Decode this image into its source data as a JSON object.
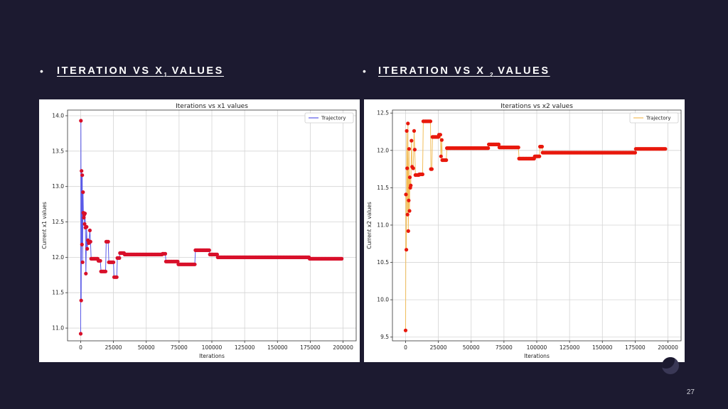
{
  "slide": {
    "page_number": "27",
    "headings": [
      {
        "bullet": "•",
        "text": "ITERATION VS X",
        "sub": "1",
        "rest": " VALUES"
      },
      {
        "bullet": "•",
        "text": "ITERATION VS X ",
        "sub": "2",
        "rest": " VALUES"
      }
    ]
  },
  "chart_data": [
    {
      "type": "line",
      "title": "Iterations vs x1 values",
      "xlabel": "Iterations",
      "ylabel": "Current x1 values",
      "xlim": [
        -10000,
        210000
      ],
      "ylim": [
        10.82,
        14.08
      ],
      "xticks": [
        0,
        25000,
        50000,
        75000,
        100000,
        125000,
        150000,
        175000,
        200000
      ],
      "yticks": [
        11.0,
        11.5,
        12.0,
        12.5,
        13.0,
        13.5,
        14.0
      ],
      "ytick_labels": [
        "11.0",
        "11.5",
        "12.0",
        "12.5",
        "13.0",
        "13.5",
        "14.0"
      ],
      "grid": true,
      "legend": {
        "position": "top-right",
        "entries": [
          "Trajectory"
        ]
      },
      "line_color": "#5a5ae8",
      "marker_color": "#d8102a",
      "series": [
        {
          "name": "Trajectory",
          "points": [
            [
              0,
              10.92
            ],
            [
              200,
              13.93
            ],
            [
              400,
              11.39
            ],
            [
              700,
              13.22
            ],
            [
              1000,
              12.18
            ],
            [
              1200,
              13.16
            ],
            [
              1500,
              11.93
            ],
            [
              1800,
              12.92
            ],
            [
              2100,
              12.63
            ],
            [
              2400,
              12.56
            ],
            [
              2700,
              12.6
            ],
            [
              3000,
              12.47
            ],
            [
              3300,
              12.62
            ],
            [
              3600,
              12.42
            ],
            [
              4000,
              11.77
            ],
            [
              4500,
              12.43
            ],
            [
              5000,
              12.12
            ],
            [
              5600,
              12.24
            ],
            [
              6200,
              12.2
            ],
            [
              7000,
              12.38
            ],
            [
              7500,
              12.22
            ],
            [
              8000,
              11.98
            ],
            [
              13000,
              11.98
            ],
            [
              13500,
              11.95
            ],
            [
              15000,
              11.95
            ],
            [
              15500,
              11.8
            ],
            [
              19000,
              11.8
            ],
            [
              19500,
              12.22
            ],
            [
              21000,
              12.22
            ],
            [
              21500,
              11.93
            ],
            [
              25000,
              11.93
            ],
            [
              25500,
              11.72
            ],
            [
              27500,
              11.72
            ],
            [
              28000,
              11.99
            ],
            [
              29500,
              11.99
            ],
            [
              30000,
              12.06
            ],
            [
              33000,
              12.06
            ],
            [
              33500,
              12.04
            ],
            [
              62000,
              12.04
            ],
            [
              62500,
              12.05
            ],
            [
              64500,
              12.05
            ],
            [
              65000,
              11.94
            ],
            [
              74000,
              11.94
            ],
            [
              74500,
              11.9
            ],
            [
              87000,
              11.9
            ],
            [
              87500,
              12.1
            ],
            [
              98000,
              12.1
            ],
            [
              98500,
              12.04
            ],
            [
              104000,
              12.04
            ],
            [
              104500,
              12.0
            ],
            [
              174000,
              12.0
            ],
            [
              174500,
              11.98
            ],
            [
              199000,
              11.98
            ]
          ]
        }
      ]
    },
    {
      "type": "line",
      "title": "Iterations vs x2 values",
      "xlabel": "Iterations",
      "ylabel": "Current x2 values",
      "xlim": [
        -10000,
        210000
      ],
      "ylim": [
        9.45,
        12.54
      ],
      "xticks": [
        0,
        25000,
        50000,
        75000,
        100000,
        125000,
        150000,
        175000,
        200000
      ],
      "yticks": [
        9.5,
        10.0,
        10.5,
        11.0,
        11.5,
        12.0,
        12.5
      ],
      "ytick_labels": [
        "9.5",
        "10.0",
        "10.5",
        "11.0",
        "11.5",
        "12.0",
        "12.5"
      ],
      "grid": true,
      "legend": {
        "position": "top-right",
        "entries": [
          "Trajectory"
        ]
      },
      "line_color": "#f2be5a",
      "marker_color": "#e8180c",
      "series": [
        {
          "name": "Trajectory",
          "points": [
            [
              0,
              9.59
            ],
            [
              300,
              11.41
            ],
            [
              600,
              10.67
            ],
            [
              900,
              12.26
            ],
            [
              1200,
              11.76
            ],
            [
              1500,
              11.14
            ],
            [
              1800,
              12.36
            ],
            [
              2100,
              10.92
            ],
            [
              2400,
              11.33
            ],
            [
              2700,
              12.02
            ],
            [
              3000,
              11.19
            ],
            [
              3300,
              11.64
            ],
            [
              3600,
              11.5
            ],
            [
              4000,
              11.53
            ],
            [
              4500,
              12.13
            ],
            [
              5000,
              11.78
            ],
            [
              5800,
              11.76
            ],
            [
              6500,
              12.26
            ],
            [
              7000,
              12.01
            ],
            [
              7500,
              11.67
            ],
            [
              10000,
              11.67
            ],
            [
              10500,
              11.68
            ],
            [
              13000,
              11.68
            ],
            [
              13500,
              12.39
            ],
            [
              19000,
              12.39
            ],
            [
              19300,
              11.75
            ],
            [
              20000,
              11.75
            ],
            [
              20500,
              12.18
            ],
            [
              25000,
              12.18
            ],
            [
              25500,
              12.21
            ],
            [
              26500,
              12.21
            ],
            [
              27000,
              11.92
            ],
            [
              27600,
              12.14
            ],
            [
              28000,
              11.87
            ],
            [
              31000,
              11.87
            ],
            [
              31500,
              12.03
            ],
            [
              63000,
              12.03
            ],
            [
              63500,
              12.08
            ],
            [
              71000,
              12.08
            ],
            [
              71500,
              12.04
            ],
            [
              86000,
              12.04
            ],
            [
              86500,
              11.89
            ],
            [
              98000,
              11.89
            ],
            [
              98500,
              11.92
            ],
            [
              102000,
              11.92
            ],
            [
              102500,
              12.05
            ],
            [
              104000,
              12.05
            ],
            [
              104500,
              11.97
            ],
            [
              175000,
              11.97
            ],
            [
              175500,
              12.02
            ],
            [
              198000,
              12.02
            ]
          ]
        }
      ]
    }
  ]
}
